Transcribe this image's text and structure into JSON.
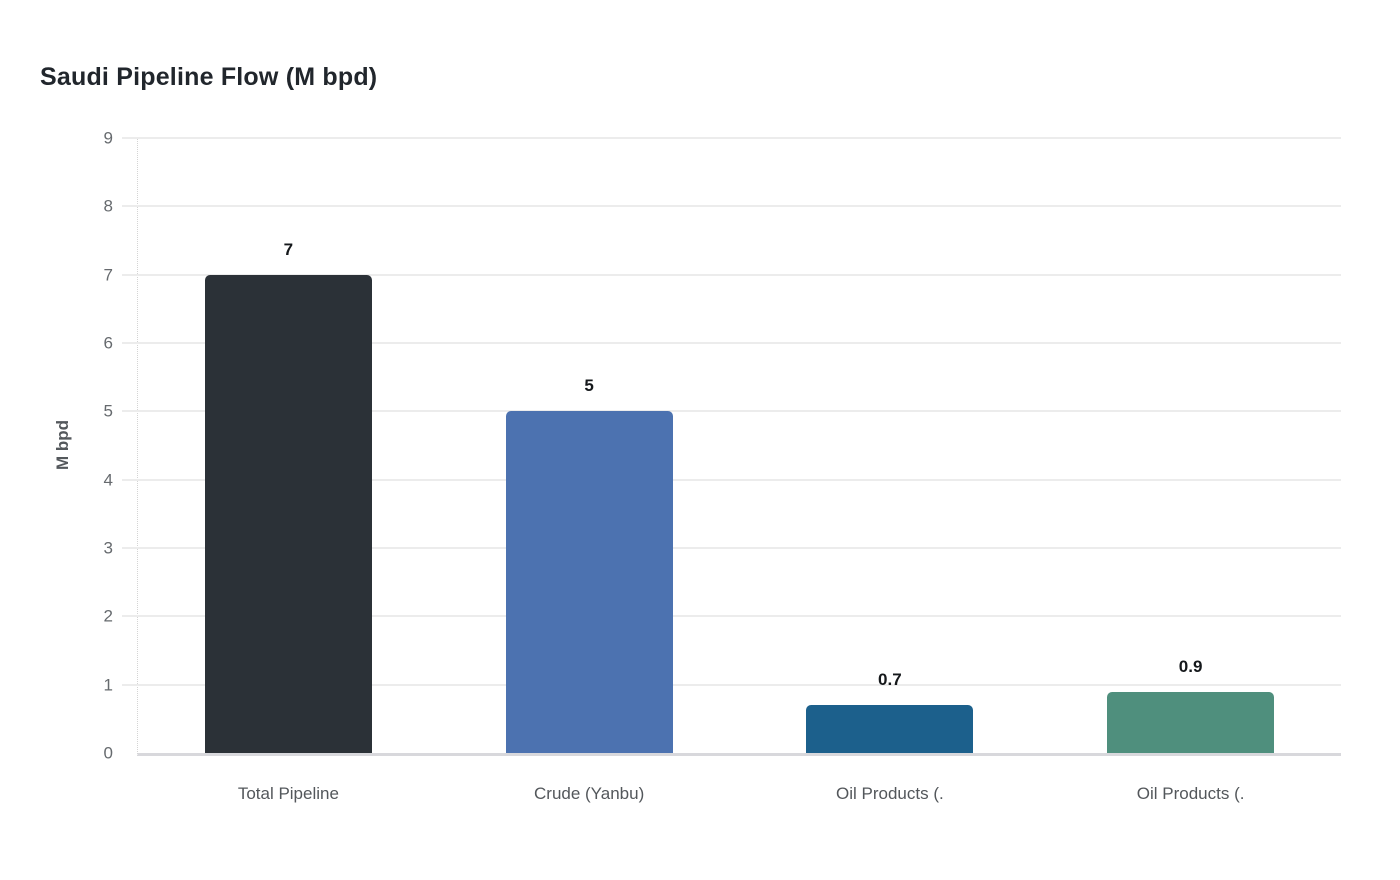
{
  "page": {
    "title": "Saudi Pipeline Flow (M bpd)"
  },
  "chart_data": {
    "type": "bar",
    "title": "Saudi Pipeline Flow (M bpd)",
    "categories": [
      "Total Pipeline",
      "Crude (Yanbu)",
      "Oil Products (.",
      "Oil Products (."
    ],
    "values": [
      7,
      5,
      0.7,
      0.9
    ],
    "value_labels": [
      "7",
      "5",
      "0.7",
      "0.9"
    ],
    "bar_colors": [
      "#2b3137",
      "#4c72b0",
      "#1c608c",
      "#4f8f7d"
    ],
    "xlabel": "",
    "ylabel": "M bpd",
    "ylim": [
      0,
      9
    ],
    "yticks": [
      0,
      1,
      2,
      3,
      4,
      5,
      6,
      7,
      8,
      9
    ],
    "grid": "horizontal",
    "legend": "none"
  },
  "colors": {
    "background": "#ffffff",
    "grid": "#ececec",
    "axis_line": "#d8d8dc",
    "tick_text": "#666a6e",
    "x_tick_text": "#53575b",
    "title_text": "#21262c",
    "value_label_text": "#15181b",
    "axis_title_text": "#54585c"
  }
}
